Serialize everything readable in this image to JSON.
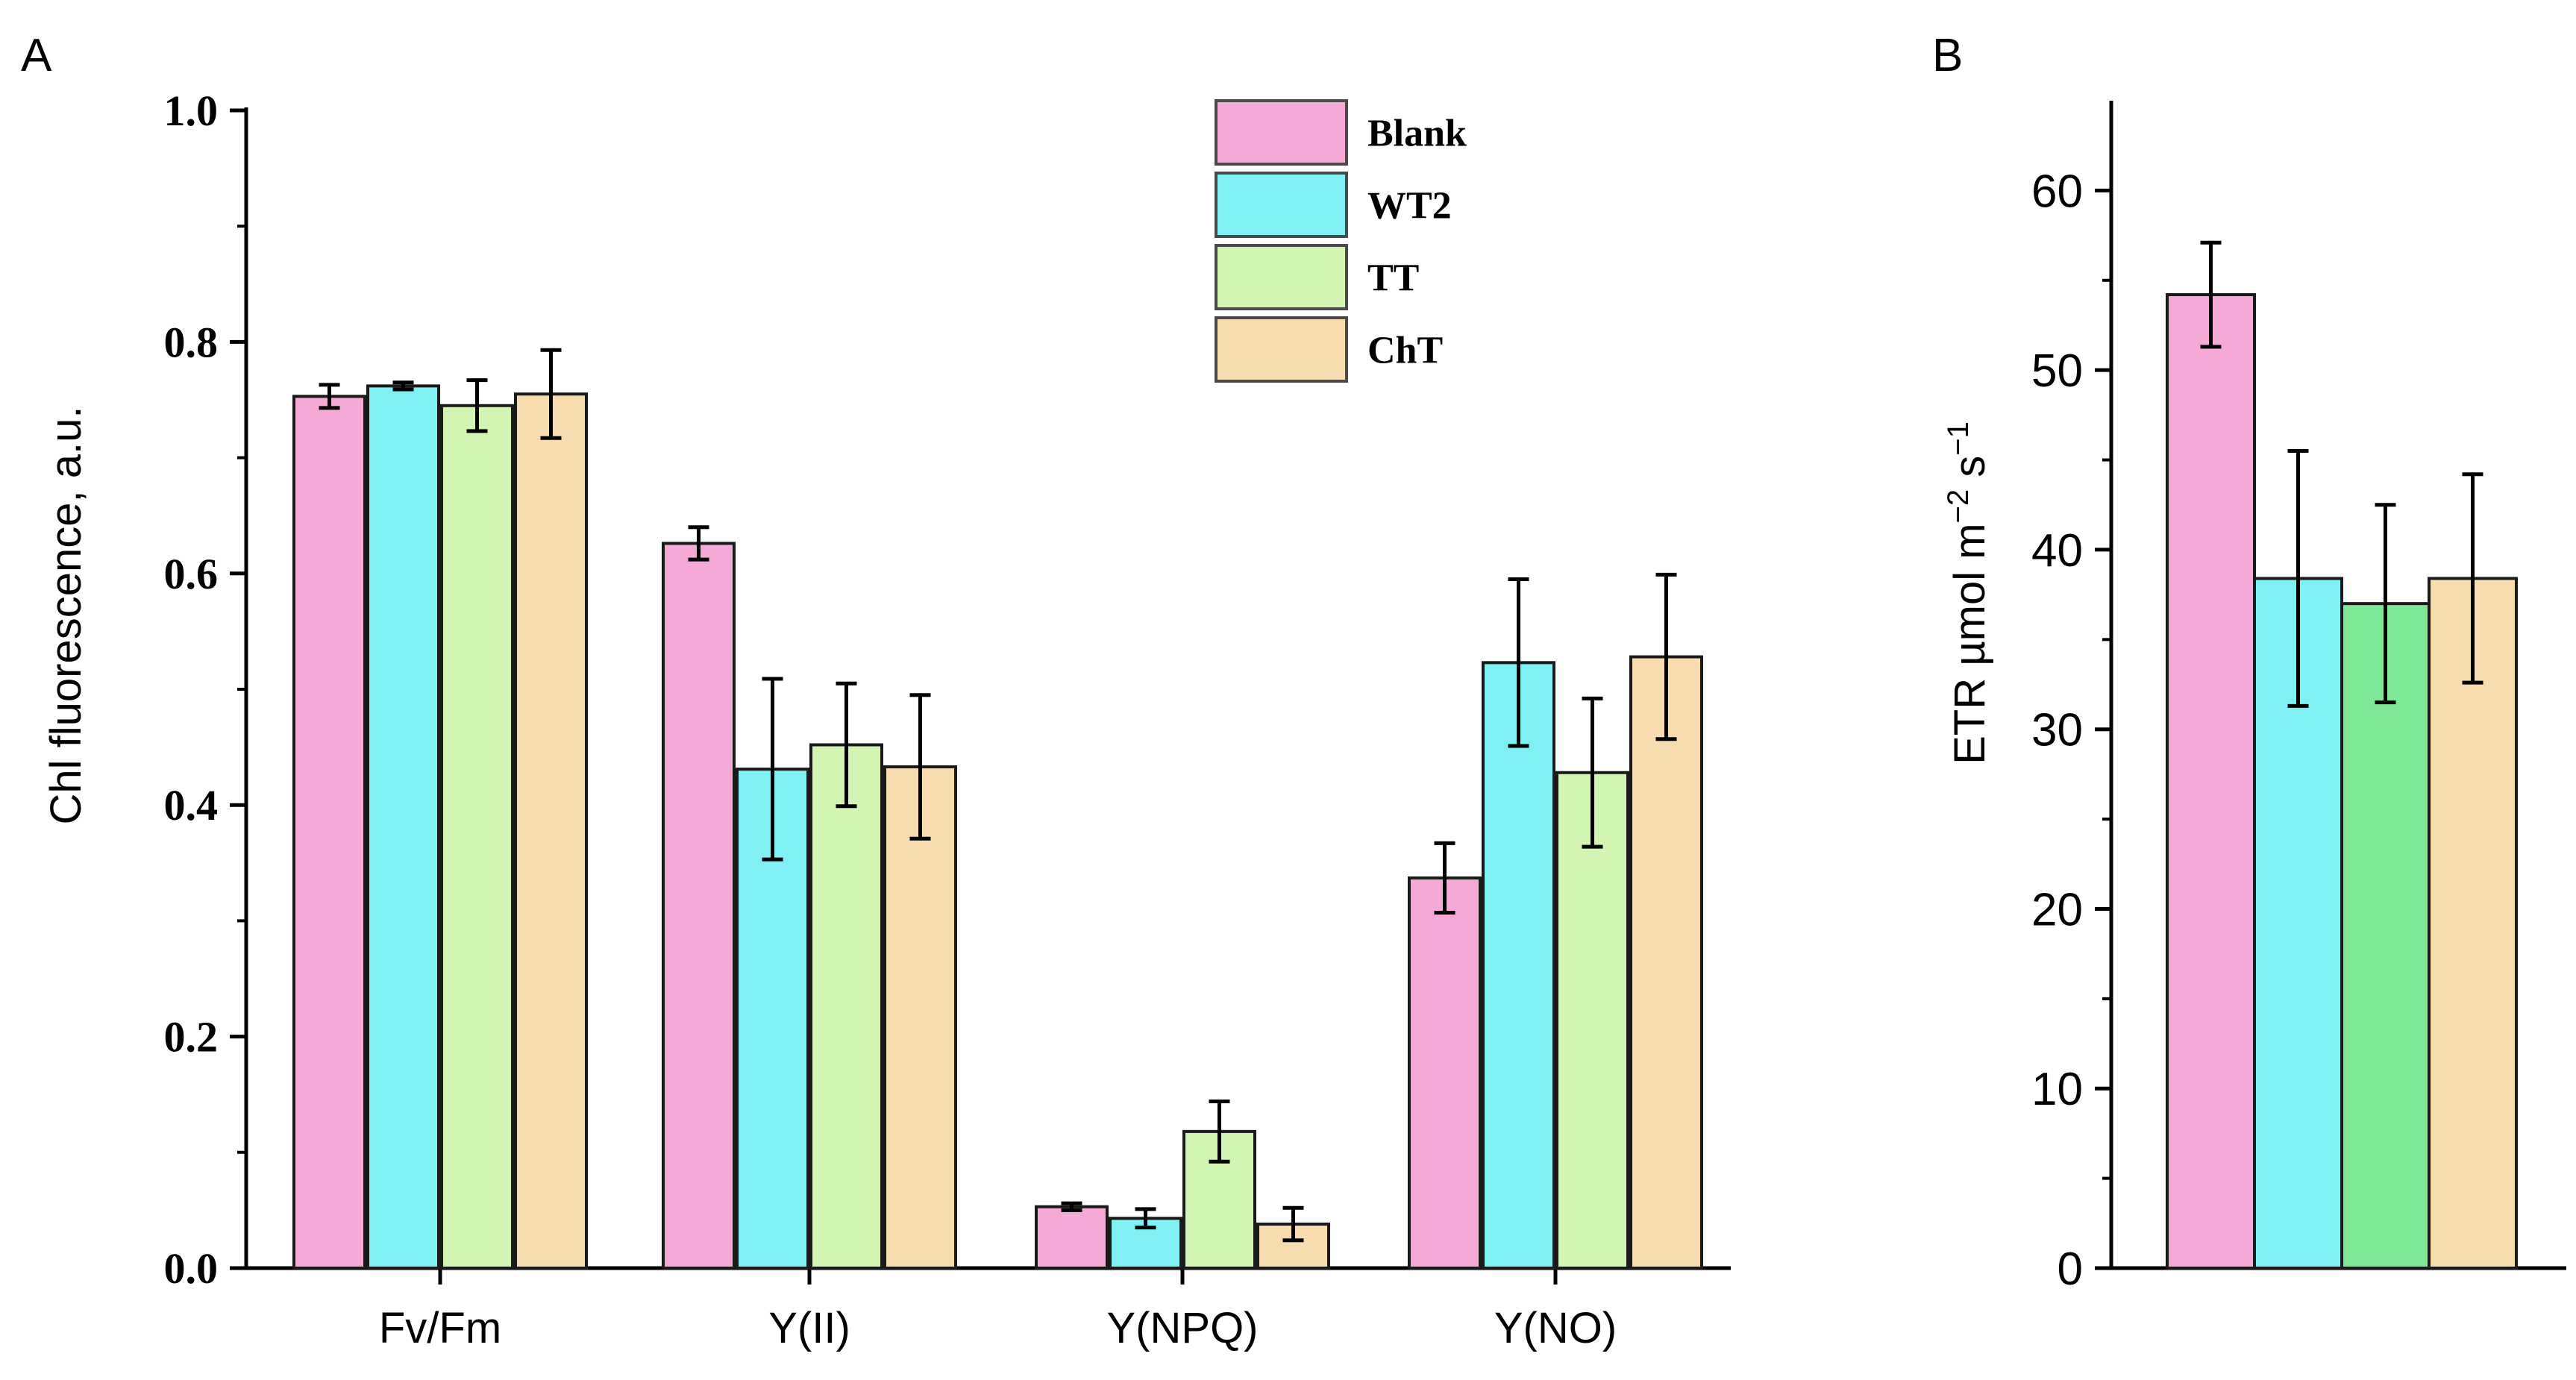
{
  "panel_labels": {
    "a": "A",
    "b": "B"
  },
  "chart_data": [
    {
      "type": "bar",
      "panel": "A",
      "categories": [
        "Fv/Fm",
        "Y(II)",
        "Y(NPQ)",
        "Y(NO)"
      ],
      "series": [
        {
          "name": "Blank",
          "color": "#f5a9d6",
          "values": [
            0.753,
            0.626,
            0.053,
            0.337
          ],
          "errors": [
            0.01,
            0.014,
            0.003,
            0.03
          ]
        },
        {
          "name": "WT2",
          "color": "#7ff0f4",
          "values": [
            0.762,
            0.431,
            0.043,
            0.523
          ],
          "errors": [
            0.003,
            0.078,
            0.008,
            0.072
          ]
        },
        {
          "name": "TT",
          "color": "#d2f5b4",
          "values": [
            0.745,
            0.452,
            0.118,
            0.428
          ],
          "errors": [
            0.022,
            0.053,
            0.026,
            0.064
          ]
        },
        {
          "name": "ChT",
          "color": "#f8dcb0",
          "values": [
            0.755,
            0.433,
            0.038,
            0.528
          ],
          "errors": [
            0.038,
            0.062,
            0.014,
            0.071
          ]
        }
      ],
      "ylabel": "Chl fluorescence, a.u.",
      "xlabel": "",
      "ylim": [
        0,
        1.0
      ],
      "yticks": [
        0.0,
        0.2,
        0.4,
        0.6,
        0.8,
        1.0
      ],
      "ytick_labels": [
        "0.0",
        "0.2",
        "0.4",
        "0.6",
        "0.8",
        "1.0"
      ],
      "legend": [
        "Blank",
        "WT2",
        "TT",
        "ChT"
      ],
      "legend_position": "top-right"
    },
    {
      "type": "bar",
      "panel": "B",
      "categories": [
        "Blank",
        "WT2",
        "TT",
        "ChT"
      ],
      "colors": [
        "#f5a9d6",
        "#7ff0f4",
        "#7ee897",
        "#f8dcb0"
      ],
      "values": [
        54.2,
        38.4,
        37.0,
        38.4
      ],
      "errors": [
        2.9,
        7.1,
        5.5,
        5.8
      ],
      "ylabel": "ETR µmol m⁻² s⁻¹",
      "xlabel": "",
      "ylim": [
        0,
        65
      ],
      "yticks": [
        0,
        10,
        20,
        30,
        40,
        50,
        60
      ],
      "ytick_labels": [
        "0",
        "10",
        "20",
        "30",
        "40",
        "50",
        "60"
      ]
    }
  ]
}
